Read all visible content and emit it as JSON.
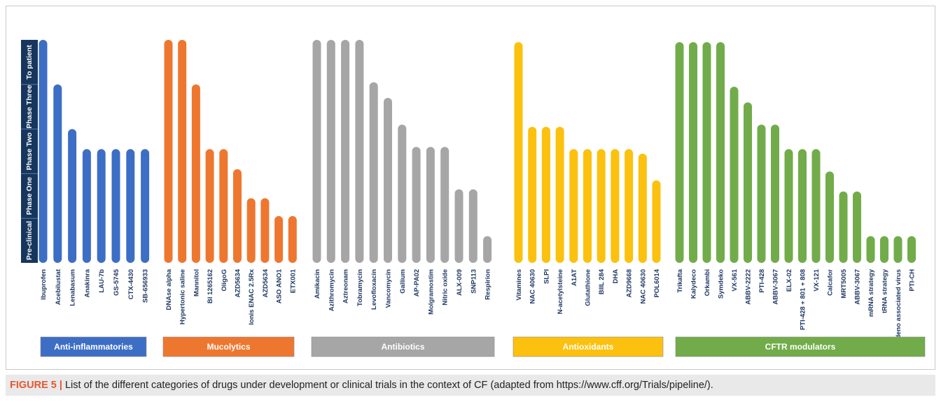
{
  "chart_data": {
    "type": "bar",
    "phases": [
      "Pre-clinical",
      "Phase One",
      "Phase Two",
      "Phase Three",
      "To patient"
    ],
    "ylim": [
      0,
      5
    ],
    "groups": [
      {
        "name": "Anti-inflammatories",
        "color": "#3d6ec5",
        "categories": [
          "Ibuprofen",
          "Acebilustat",
          "Lenabasum",
          "Anakinra",
          "LAU-7b",
          "GS-5745",
          "CTX-4430",
          "SB-656933"
        ],
        "values": [
          5.0,
          4.0,
          3.0,
          2.55,
          2.55,
          2.55,
          2.55,
          2.55
        ]
      },
      {
        "name": "Mucolytics",
        "color": "#ee7730",
        "categories": [
          "DNAse alpha",
          "Hypertonic saline",
          "Mannitol",
          "BI 1265162",
          "OligoG",
          "AZD5634",
          "Ionis ENAC 2.5Rx",
          "AZD5634",
          "ASO ANO1",
          "ETX001"
        ],
        "values": [
          5.0,
          5.0,
          4.0,
          2.55,
          2.55,
          2.1,
          1.45,
          1.45,
          1.05,
          1.05
        ]
      },
      {
        "name": "Antibiotics",
        "color": "#a6a6a6",
        "categories": [
          "Amikacin",
          "Azithromycin",
          "Aztreonam",
          "Tobramycin",
          "Levofloxacin",
          "Vancomycin",
          "Gallium",
          "AP-PA02",
          "Molgramostim",
          "Nitric oxide",
          "ALX-009",
          "SNP113",
          "Respirion"
        ],
        "values": [
          5.0,
          5.0,
          5.0,
          5.0,
          4.05,
          3.7,
          3.1,
          2.6,
          2.6,
          2.6,
          1.65,
          1.65,
          0.6
        ]
      },
      {
        "name": "Antioxidants",
        "color": "#fcc10e",
        "categories": [
          "Vitamines",
          "NAC 40630",
          "SLPI",
          "N-acetylsteine",
          "A1AT",
          "Glutathione",
          "BIIL 284",
          "DHA",
          "AZD9668",
          "NAC 40630",
          "POL6014"
        ],
        "values": [
          4.95,
          3.05,
          3.05,
          3.05,
          2.55,
          2.55,
          2.55,
          2.55,
          2.55,
          2.45,
          1.85
        ]
      },
      {
        "name": "CFTR modulators",
        "color": "#72ac4a",
        "categories": [
          "Trikafta",
          "Kalydeco",
          "Orkambi",
          "Symdeko",
          "VX-561",
          "ABBV-2222",
          "PTI-428",
          "ABBV-3067",
          "ELX-02",
          "PTI-428 + 801 + 808",
          "VX-121",
          "Calcafor",
          "MRT5005",
          "ABBV-3067",
          "mRNA strategy",
          "tRNA strategy",
          "Adeno associated virus",
          "PTI-CH"
        ],
        "values": [
          4.95,
          4.95,
          4.95,
          4.95,
          3.95,
          3.6,
          3.1,
          3.1,
          2.55,
          2.55,
          2.55,
          2.05,
          1.6,
          1.6,
          0.6,
          0.6,
          0.6,
          0.6
        ]
      }
    ]
  },
  "caption": {
    "label": "FIGURE 5",
    "separator": "|",
    "text": " List of the different categories of drugs under development or clinical trials in the context of CF (adapted from https://www.cff.org/Trials/pipeline/)."
  },
  "colors": {
    "axis_panel": "#17365d",
    "axis_text": "#ffffff",
    "label_text": "#1f3864",
    "caption_bg": "#e9e9ea"
  }
}
